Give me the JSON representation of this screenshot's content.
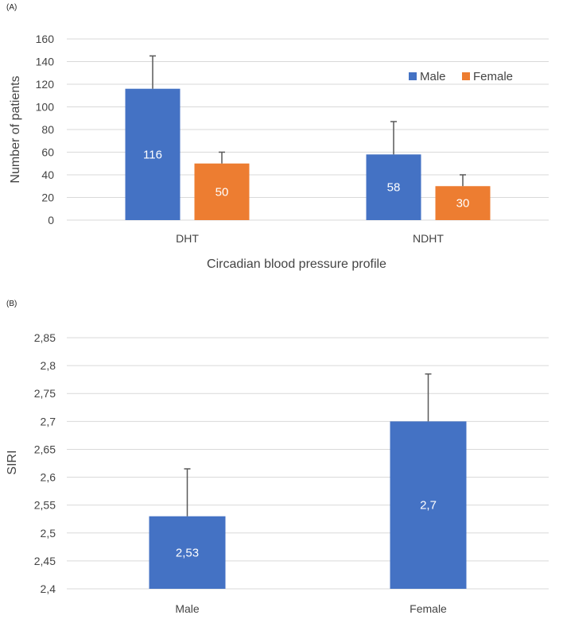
{
  "chart_data": [
    {
      "panel": "(A)",
      "type": "bar",
      "xlabel": "Circadian blood pressure profile",
      "ylabel": "Number of patients",
      "ylim": [
        0,
        160
      ],
      "yticks": [
        0,
        20,
        40,
        60,
        80,
        100,
        120,
        140,
        160
      ],
      "ytick_labels": [
        "0",
        "20",
        "40",
        "60",
        "80",
        "100",
        "120",
        "140",
        "160"
      ],
      "categories": [
        "DHT",
        "NDHT"
      ],
      "series": [
        {
          "name": "Male",
          "color": "#4472c4",
          "values": [
            116,
            58
          ],
          "labels": [
            "116",
            "58"
          ],
          "error_upper": [
            145,
            87
          ]
        },
        {
          "name": "Female",
          "color": "#ed7d31",
          "values": [
            50,
            30
          ],
          "labels": [
            "50",
            "30"
          ],
          "error_upper": [
            60,
            40
          ]
        }
      ],
      "legend": "top-right",
      "grid": true
    },
    {
      "panel": "(B)",
      "type": "bar",
      "xlabel": "",
      "ylabel": "SIRI",
      "ylim": [
        2.4,
        2.85
      ],
      "yticks": [
        2.4,
        2.45,
        2.5,
        2.55,
        2.6,
        2.65,
        2.7,
        2.75,
        2.8,
        2.85
      ],
      "ytick_labels": [
        "2,4",
        "2,45",
        "2,5",
        "2,55",
        "2,6",
        "2,65",
        "2,7",
        "2,75",
        "2,8",
        "2,85"
      ],
      "categories": [
        "Male",
        "Female"
      ],
      "series": [
        {
          "name": "SIRI",
          "color": "#4472c4",
          "values": [
            2.53,
            2.7
          ],
          "labels": [
            "2,53",
            "2,7"
          ],
          "error_upper": [
            2.615,
            2.785
          ]
        }
      ],
      "grid": true
    }
  ]
}
